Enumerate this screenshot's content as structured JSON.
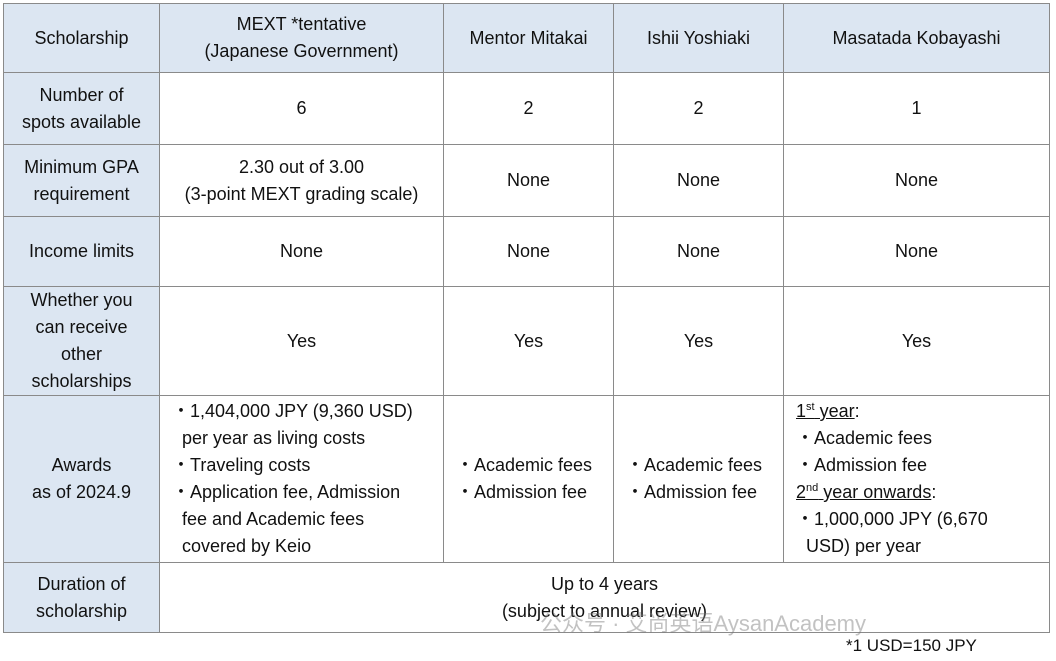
{
  "table": {
    "header": [
      [
        "Scholarship"
      ],
      [
        "MEXT *tentative",
        "(Japanese Government)"
      ],
      [
        "Mentor Mitakai"
      ],
      [
        "Ishii Yoshiaki"
      ],
      [
        "Masatada Kobayashi"
      ]
    ],
    "rows": [
      {
        "label": [
          "Number of",
          "spots available"
        ],
        "cells": [
          [
            "6"
          ],
          [
            "2"
          ],
          [
            "2"
          ],
          [
            "1"
          ]
        ]
      },
      {
        "label": [
          "Minimum GPA",
          "requirement"
        ],
        "cells": [
          [
            "2.30 out of 3.00",
            "(3-point MEXT grading scale)"
          ],
          [
            "None"
          ],
          [
            "None"
          ],
          [
            "None"
          ]
        ]
      },
      {
        "label": [
          "Income limits"
        ],
        "cells": [
          [
            "None"
          ],
          [
            "None"
          ],
          [
            "None"
          ],
          [
            "None"
          ]
        ]
      },
      {
        "label": [
          "Whether you",
          "can receive",
          "other",
          "scholarships"
        ],
        "cells": [
          [
            "Yes"
          ],
          [
            "Yes"
          ],
          [
            "Yes"
          ],
          [
            "Yes"
          ]
        ]
      },
      {
        "label": [
          "Awards",
          "as of 2024.9"
        ],
        "cells": [
          [
            "・1,404,000 JPY (9,360 USD)",
            "per year as living costs",
            "・Traveling costs",
            "・Application fee, Admission",
            "fee and Academic fees",
            "covered by Keio"
          ],
          [
            "・Academic fees",
            "・Admission fee"
          ],
          [
            "・Academic fees",
            "・Admission fee"
          ],
          [
            {
              "main": "1",
              "sup": "st",
              "tail": " year",
              "after": ":"
            },
            "・Academic fees",
            "・Admission fee",
            {
              "main": "2",
              "sup": "nd",
              "tail": " year onwards",
              "after": ":"
            },
            "・1,000,000 JPY (6,670",
            "USD) per year"
          ]
        ]
      },
      {
        "label": [
          "Duration of",
          "scholarship"
        ],
        "cells": [
          [
            "Up to 4 years",
            "(subject to annual review)"
          ]
        ]
      }
    ],
    "footnote": "*1 USD=150 JPY",
    "watermark": "公众号 · 艾尚英语AysanAcademy"
  }
}
